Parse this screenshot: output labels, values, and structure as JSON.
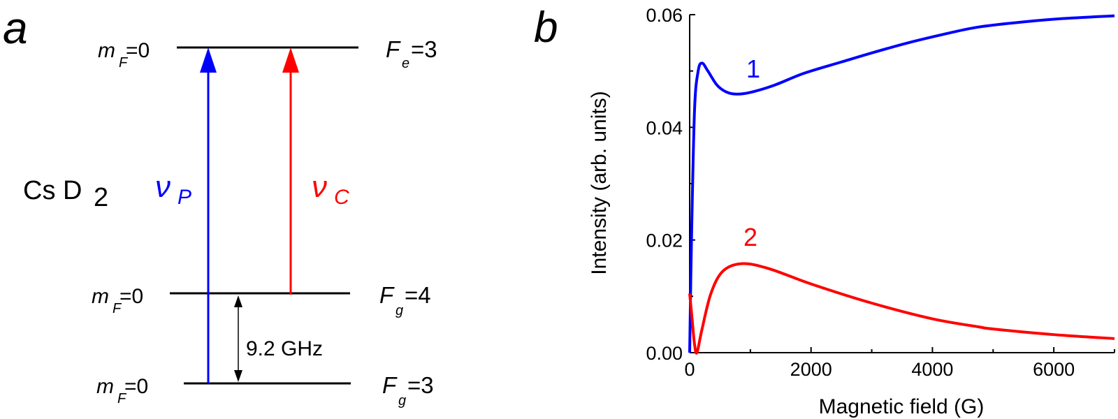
{
  "panel_a": {
    "label": "a",
    "title": "Cs D",
    "title_sub": "2",
    "levels": [
      {
        "name": "excited",
        "left_main": "m",
        "left_sub": "F",
        "left_val": "=0",
        "right_main": "F",
        "right_sub": "e",
        "right_val": "=3"
      },
      {
        "name": "ground-upper",
        "left_main": "m",
        "left_sub": "F",
        "left_val": "=0",
        "right_main": "F",
        "right_sub": "g",
        "right_val": "=4"
      },
      {
        "name": "ground-lower",
        "left_main": "m",
        "left_sub": "F",
        "left_val": "=0",
        "right_main": "F",
        "right_sub": "g",
        "right_val": "=3"
      }
    ],
    "probe": {
      "symbol": "ν",
      "sub": "P",
      "color": "#0000ff"
    },
    "coupling": {
      "symbol": "ν",
      "sub": "C",
      "color": "#ff0000"
    },
    "splitting": "9.2 GHz"
  },
  "panel_b": {
    "label": "b",
    "curve_labels": [
      "1",
      "2"
    ]
  },
  "chart_data": {
    "type": "line",
    "title": "",
    "xlabel": "Magnetic field (G)",
    "ylabel": "Intensity (arb. units)",
    "xlim": [
      0,
      7000
    ],
    "ylim": [
      0,
      0.06
    ],
    "xticks": [
      "0",
      "2000",
      "4000",
      "6000"
    ],
    "yticks": [
      "0.00",
      "0.02",
      "0.04",
      "0.06"
    ],
    "grid": false,
    "legend": "inline labels",
    "series": [
      {
        "name": "1",
        "color": "#0000ff",
        "x": [
          0,
          30,
          80,
          140,
          205,
          300,
          450,
          600,
          770,
          1000,
          1400,
          1885,
          2500,
          3030,
          3600,
          4180,
          4700,
          5300,
          6000,
          7000
        ],
        "y": [
          0.0,
          0.02,
          0.043,
          0.05,
          0.0514,
          0.05,
          0.0475,
          0.0463,
          0.0459,
          0.0462,
          0.0475,
          0.0496,
          0.0516,
          0.0533,
          0.055,
          0.0565,
          0.0577,
          0.0585,
          0.0592,
          0.0598
        ]
      },
      {
        "name": "2",
        "color": "#ff0000",
        "x": [
          0,
          40,
          80,
          120,
          200,
          350,
          550,
          870,
          1310,
          2000,
          3000,
          4000,
          4750,
          5000,
          6000,
          7000
        ],
        "y": [
          0.0105,
          0.006,
          0.0015,
          0.0,
          0.004,
          0.0105,
          0.0145,
          0.0158,
          0.0149,
          0.0122,
          0.0088,
          0.006,
          0.0046,
          0.0042,
          0.0032,
          0.0025
        ]
      }
    ]
  }
}
